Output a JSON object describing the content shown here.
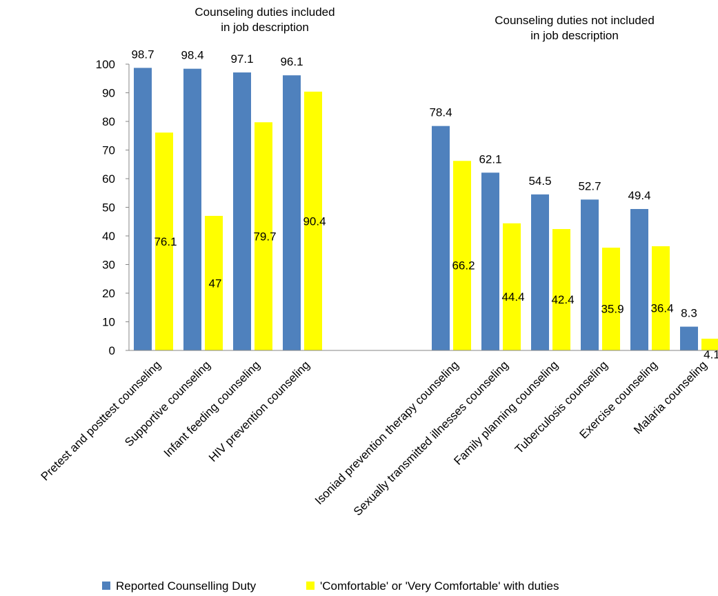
{
  "chart_data": {
    "type": "bar",
    "title": "",
    "xlabel": "",
    "ylabel": "",
    "ylim": [
      0,
      100
    ],
    "yticks": [
      0,
      10,
      20,
      30,
      40,
      50,
      60,
      70,
      80,
      90,
      100
    ],
    "grid": false,
    "legend_position": "bottom",
    "groups": [
      {
        "label_lines": [
          "Counseling duties included",
          "in job description"
        ],
        "category_count": 4
      },
      {
        "label_lines": [
          "Counseling duties not included",
          "in job description"
        ],
        "category_count": 6
      }
    ],
    "categories": [
      "Pretest and posttest counseling",
      "Supportive counseling",
      "Infant feeding counseling",
      "HIV prevention counseling",
      "Isoniad prevention therapy counseling",
      "Sexually transmitted illnesses  counseling",
      "Family planning  counseling",
      "Tuberculosis counseling",
      "Exercise counseling",
      "Malaria counseling"
    ],
    "series": [
      {
        "name": "Reported Counselling Duty",
        "color": "#4f81bd",
        "values": [
          98.7,
          98.4,
          97.1,
          96.1,
          78.4,
          62.1,
          54.5,
          52.7,
          49.4,
          8.3
        ],
        "labels": [
          "98.7",
          "98.4",
          "97.1",
          "96.1",
          "78.4",
          "62.1",
          "54.5",
          "52.7",
          "49.4",
          "8.3"
        ]
      },
      {
        "name": "'Comfortable' or 'Very Comfortable' with duties",
        "color": "#ffff00",
        "values": [
          76.1,
          47,
          79.7,
          90.4,
          66.2,
          44.4,
          42.4,
          35.9,
          36.4,
          4.1
        ],
        "labels": [
          "76.1",
          "47",
          "79.7",
          "90.4",
          "66.2",
          "44.4",
          "42.4",
          "35.9",
          "36.4",
          "4.1"
        ]
      }
    ]
  }
}
